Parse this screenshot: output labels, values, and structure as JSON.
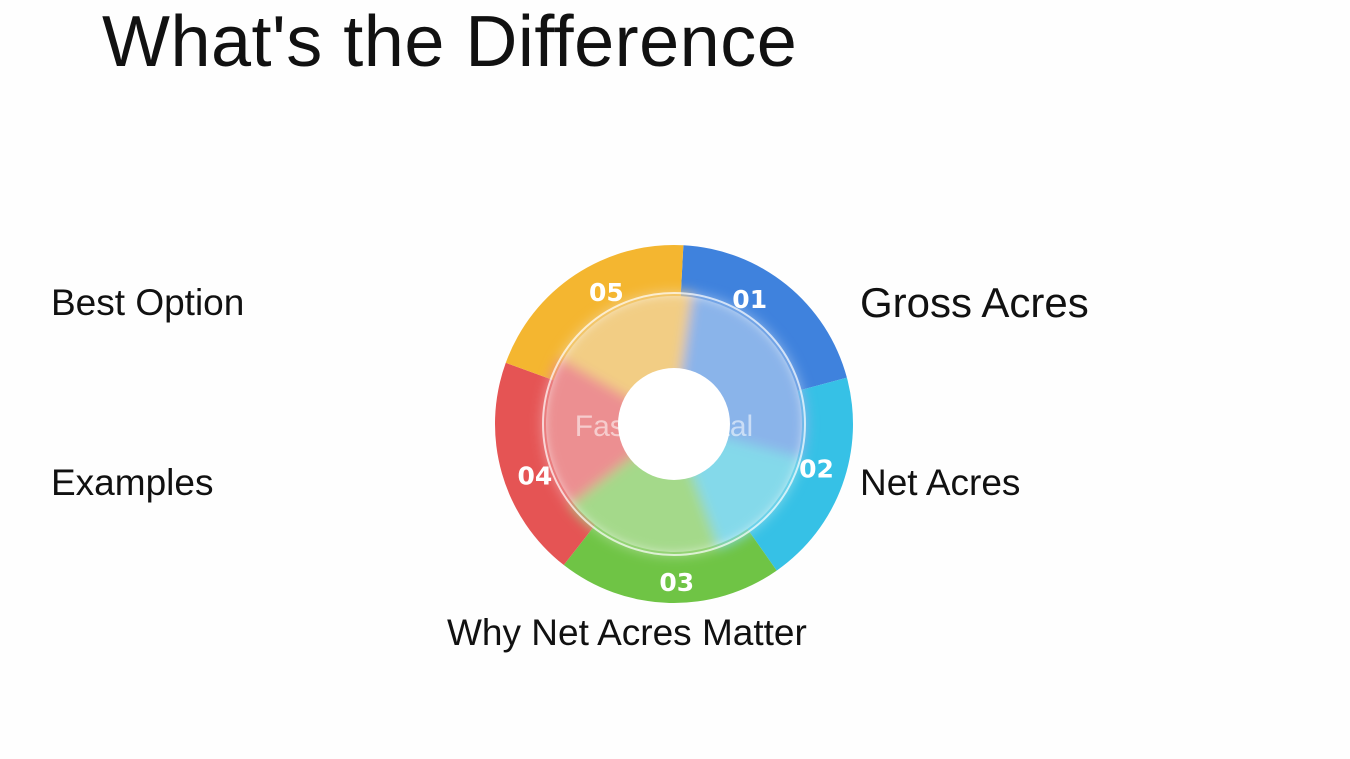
{
  "title": "What's the Difference",
  "labels": {
    "best_option": "Best Option",
    "examples": "Examples",
    "gross_acres": "Gross Acres",
    "net_acres": "Net Acres",
    "why_net_acres": "Why Net Acres Matter"
  },
  "wheel": {
    "watermark": "FasterCapital",
    "segments": [
      {
        "number": "01",
        "color": "#3f82dd",
        "inner_color": "#8ab4ea"
      },
      {
        "number": "02",
        "color": "#36c1e6",
        "inner_color": "#84d9ea"
      },
      {
        "number": "03",
        "color": "#6fc445",
        "inner_color": "#a4d98a"
      },
      {
        "number": "04",
        "color": "#e55454",
        "inner_color": "#ec8f91"
      },
      {
        "number": "05",
        "color": "#f4b630",
        "inner_color": "#f2cd84"
      }
    ]
  }
}
